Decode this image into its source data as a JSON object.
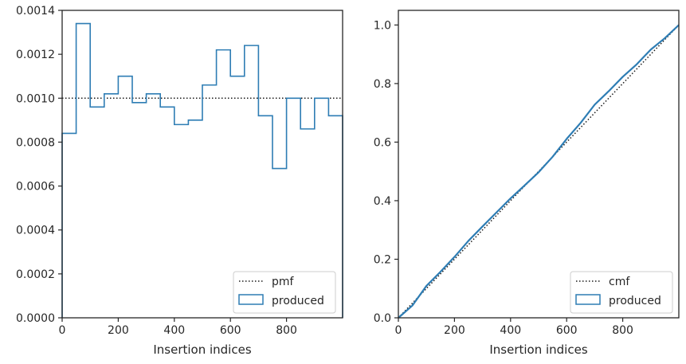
{
  "colors": {
    "series": "#2e7db4",
    "reference": "#1a1a1a",
    "axes": "#262626"
  },
  "chart_data": [
    {
      "type": "step",
      "title": "",
      "xlabel": "Insertion indices",
      "ylabel": "",
      "xlim": [
        0,
        1000
      ],
      "ylim": [
        0,
        0.0014
      ],
      "grid": false,
      "legend_position": "lower-right",
      "x_ticks": [
        0,
        200,
        400,
        600,
        800
      ],
      "x_tick_labels": [
        "0",
        "200",
        "400",
        "600",
        "800"
      ],
      "y_ticks": [
        0,
        0.0002,
        0.0004,
        0.0006,
        0.0008,
        0.001,
        0.0012,
        0.0014
      ],
      "y_tick_labels": [
        "0.0000",
        "0.0002",
        "0.0004",
        "0.0006",
        "0.0008",
        "0.0010",
        "0.0012",
        "0.0014"
      ],
      "reference": {
        "name": "pmf",
        "value": 0.001
      },
      "series": [
        {
          "name": "produced",
          "bin_edges": [
            0,
            50,
            100,
            150,
            200,
            250,
            300,
            350,
            400,
            450,
            500,
            550,
            600,
            650,
            700,
            750,
            800,
            850,
            900,
            950,
            1000
          ],
          "values": [
            0.00084,
            0.00134,
            0.00096,
            0.00102,
            0.0011,
            0.00098,
            0.00102,
            0.00096,
            0.00088,
            0.0009,
            0.00106,
            0.00122,
            0.0011,
            0.00124,
            0.00092,
            0.00068,
            0.001,
            0.00086,
            0.001,
            0.00092
          ]
        }
      ]
    },
    {
      "type": "line",
      "title": "",
      "xlabel": "Insertion indices",
      "ylabel": "",
      "xlim": [
        0,
        1000
      ],
      "ylim": [
        0,
        1.05
      ],
      "grid": false,
      "legend_position": "lower-right",
      "x_ticks": [
        0,
        200,
        400,
        600,
        800
      ],
      "x_tick_labels": [
        "0",
        "200",
        "400",
        "600",
        "800"
      ],
      "y_ticks": [
        0,
        0.2,
        0.4,
        0.6,
        0.8,
        1.0
      ],
      "y_tick_labels": [
        "0.0",
        "0.2",
        "0.4",
        "0.6",
        "0.8",
        "1.0"
      ],
      "reference": {
        "name": "cmf",
        "x": [
          0,
          1000
        ],
        "y": [
          0,
          1.0
        ]
      },
      "series": [
        {
          "name": "produced",
          "x": [
            0,
            50,
            100,
            150,
            200,
            250,
            300,
            350,
            400,
            450,
            500,
            550,
            600,
            650,
            700,
            750,
            800,
            850,
            900,
            950,
            1000
          ],
          "y": [
            0,
            0.042,
            0.109,
            0.157,
            0.208,
            0.263,
            0.312,
            0.36,
            0.408,
            0.452,
            0.497,
            0.55,
            0.611,
            0.666,
            0.728,
            0.774,
            0.823,
            0.866,
            0.916,
            0.955,
            1.0
          ]
        }
      ]
    }
  ]
}
